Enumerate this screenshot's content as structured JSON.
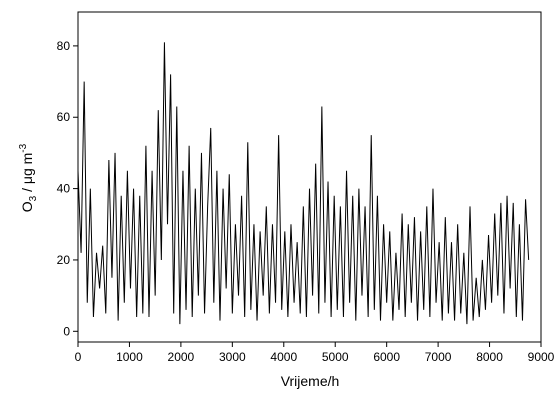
{
  "chart_data": {
    "type": "line",
    "x_label": "Vrijeme/h",
    "y_label": [
      "O",
      "3",
      " / μg m",
      "-3"
    ],
    "color": "#000000",
    "xlim": [
      0,
      9000
    ],
    "xticks": [
      0,
      1000,
      2000,
      3000,
      4000,
      5000,
      6000,
      7000,
      8000,
      9000
    ],
    "ylim": [
      -3,
      89.5
    ],
    "yticks": [
      0,
      20,
      40,
      60,
      80
    ],
    "grid": false,
    "x": [
      0,
      60,
      120,
      180,
      240,
      300,
      360,
      420,
      480,
      540,
      600,
      660,
      720,
      780,
      840,
      900,
      960,
      1020,
      1080,
      1140,
      1200,
      1260,
      1320,
      1380,
      1440,
      1500,
      1560,
      1620,
      1680,
      1740,
      1800,
      1860,
      1920,
      1980,
      2040,
      2100,
      2160,
      2220,
      2280,
      2340,
      2400,
      2460,
      2520,
      2580,
      2640,
      2700,
      2760,
      2820,
      2880,
      2940,
      3000,
      3060,
      3120,
      3180,
      3240,
      3300,
      3360,
      3420,
      3480,
      3540,
      3600,
      3660,
      3720,
      3780,
      3840,
      3900,
      3960,
      4020,
      4080,
      4140,
      4200,
      4260,
      4320,
      4380,
      4440,
      4500,
      4560,
      4620,
      4680,
      4740,
      4800,
      4860,
      4920,
      4980,
      5040,
      5100,
      5160,
      5220,
      5280,
      5340,
      5400,
      5460,
      5520,
      5580,
      5640,
      5700,
      5760,
      5820,
      5880,
      5940,
      6000,
      6060,
      6120,
      6180,
      6240,
      6300,
      6360,
      6420,
      6480,
      6540,
      6600,
      6660,
      6720,
      6780,
      6840,
      6900,
      6960,
      7020,
      7080,
      7140,
      7200,
      7260,
      7320,
      7380,
      7440,
      7500,
      7560,
      7620,
      7680,
      7740,
      7800,
      7860,
      7920,
      7980,
      8040,
      8100,
      8160,
      8220,
      8280,
      8340,
      8400,
      8460,
      8520,
      8580,
      8640,
      8700,
      8760
    ],
    "values": [
      45,
      22,
      70,
      8,
      40,
      4,
      22,
      12,
      24,
      5,
      48,
      15,
      50,
      3,
      38,
      8,
      45,
      12,
      40,
      4,
      38,
      5,
      52,
      4,
      45,
      10,
      62,
      20,
      81,
      30,
      72,
      5,
      63,
      2,
      45,
      6,
      52,
      4,
      40,
      10,
      50,
      5,
      35,
      57,
      8,
      45,
      3,
      40,
      12,
      44,
      5,
      30,
      10,
      38,
      4,
      53,
      6,
      30,
      3,
      28,
      10,
      35,
      5,
      30,
      8,
      55,
      6,
      28,
      4,
      30,
      8,
      25,
      5,
      35,
      4,
      40,
      10,
      47,
      5,
      63,
      8,
      42,
      4,
      38,
      6,
      35,
      4,
      45,
      8,
      38,
      3,
      40,
      10,
      35,
      4,
      55,
      6,
      38,
      3,
      30,
      8,
      28,
      3,
      22,
      6,
      33,
      4,
      30,
      8,
      32,
      3,
      28,
      6,
      35,
      4,
      40,
      8,
      25,
      3,
      32,
      5,
      25,
      3,
      30,
      5,
      22,
      2,
      35,
      3,
      15,
      4,
      20,
      6,
      27,
      8,
      33,
      10,
      36,
      5,
      38,
      12,
      36,
      4,
      30,
      3,
      37,
      20
    ]
  }
}
